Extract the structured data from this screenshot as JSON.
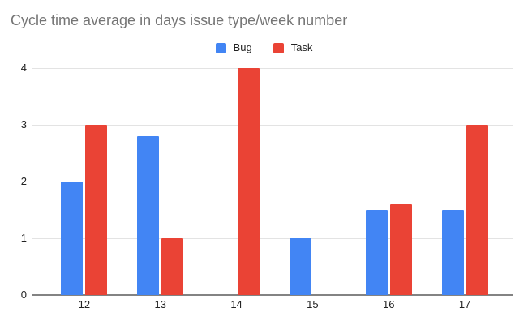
{
  "colors": {
    "title_text": "#757575",
    "axis_text": "#222222",
    "gridline": "#e3e3e3",
    "baseline": "#838383",
    "background": "#ffffff",
    "bug_blue": "#4285F4",
    "task_red": "#EA4335"
  },
  "chart_data": {
    "type": "bar",
    "title": "Cycle time average in days issue type/week number",
    "categories": [
      "12",
      "13",
      "14",
      "15",
      "16",
      "17"
    ],
    "series": [
      {
        "name": "Bug",
        "color": "#4285F4",
        "values": [
          2,
          2.8,
          0,
          1,
          1.5,
          1.5
        ]
      },
      {
        "name": "Task",
        "color": "#EA4335",
        "values": [
          3,
          1,
          4,
          0,
          1.6,
          3
        ]
      }
    ],
    "xlabel": "",
    "ylabel": "",
    "ylim": [
      0,
      4
    ],
    "yticks": [
      0,
      1,
      2,
      3,
      4
    ],
    "grid": true,
    "legend_position": "top-center"
  }
}
